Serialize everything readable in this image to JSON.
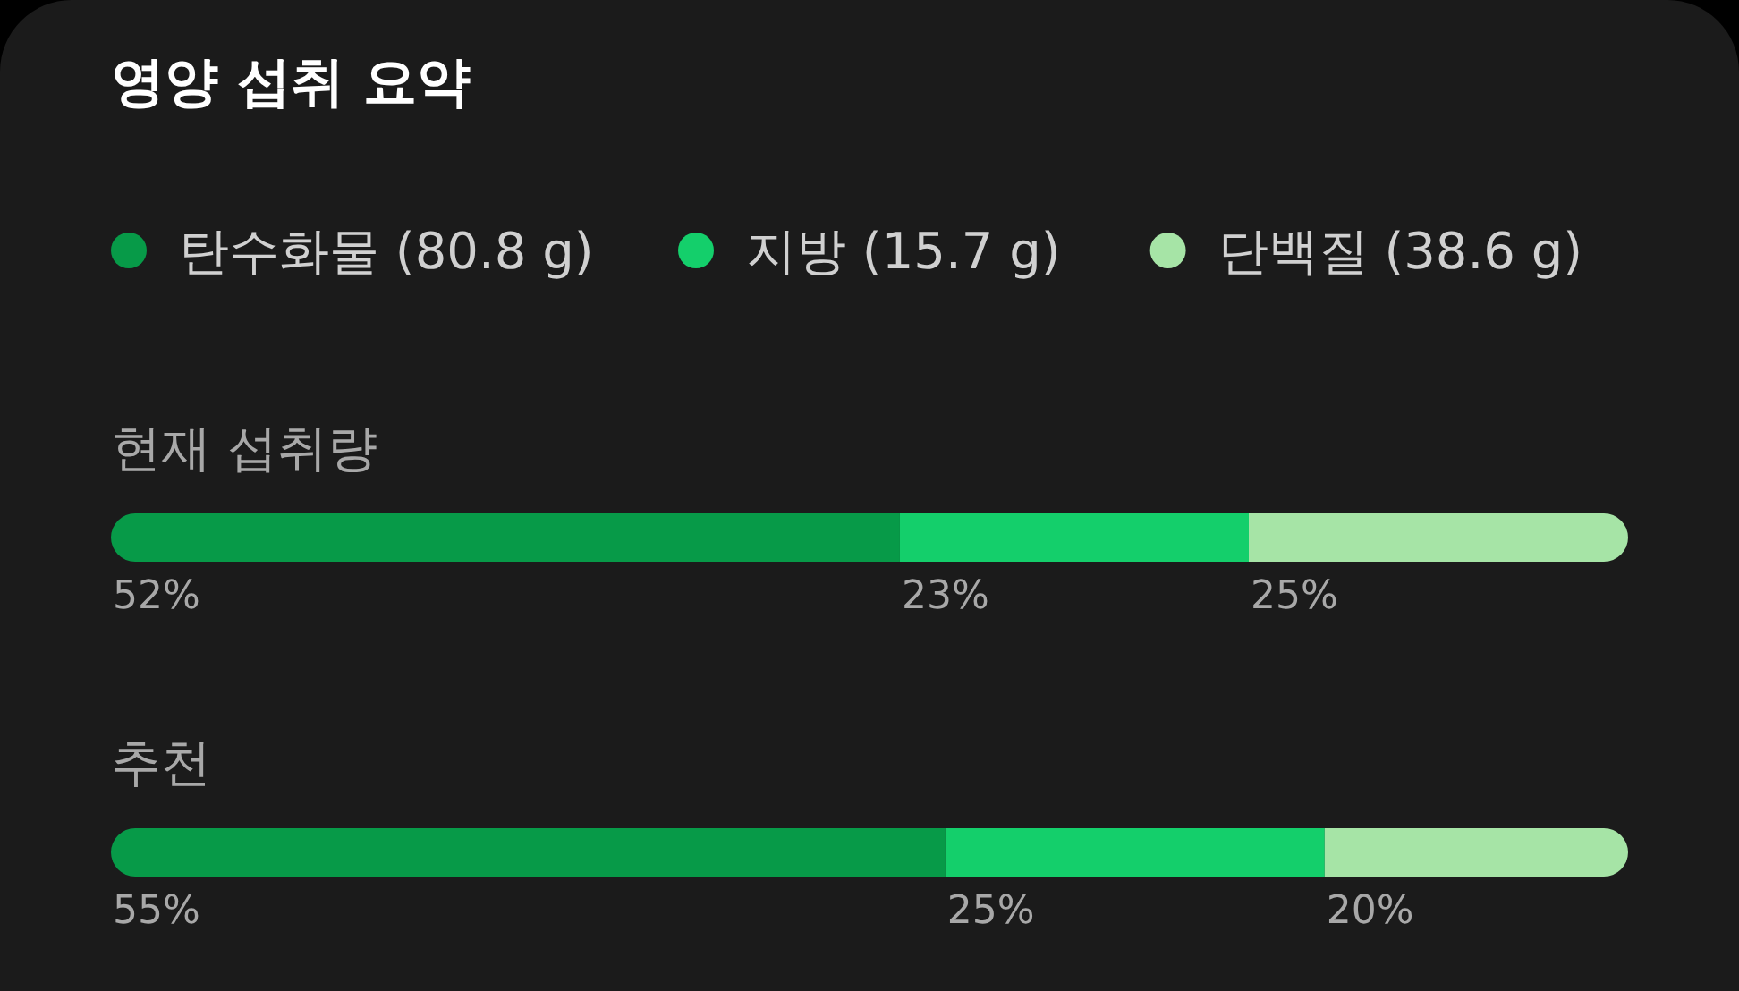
{
  "chart_data": {
    "type": "bar",
    "orientation": "horizontal",
    "stacked": true,
    "title": "영양 섭취 요약",
    "legend": "top left",
    "categories": [
      "현재 섭취량",
      "추천"
    ],
    "series": [
      {
        "name": "탄수화물 (80.8 g)",
        "color": "#079a48",
        "values": [
          52,
          55
        ],
        "value_labels": [
          "52%",
          "55%"
        ]
      },
      {
        "name": "지방 (15.7 g)",
        "color": "#14cf6b",
        "values": [
          23,
          25
        ],
        "value_labels": [
          "23%",
          "25%"
        ]
      },
      {
        "name": "단백질 (38.6 g)",
        "color": "#a6e4a6",
        "values": [
          25,
          20
        ],
        "value_labels": [
          "25%",
          "20%"
        ]
      }
    ]
  }
}
